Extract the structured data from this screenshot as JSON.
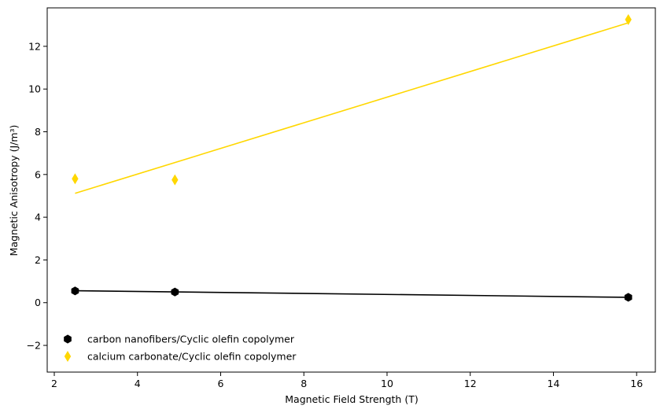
{
  "chart_data": {
    "type": "scatter",
    "title": "",
    "xlabel": "Magnetic Field Strength (T)",
    "ylabel": "Magnetic Anisotropy (J/m³)",
    "xlim": [
      1.83,
      16.45
    ],
    "ylim": [
      -3.25,
      13.8
    ],
    "xticks": [
      2,
      4,
      6,
      8,
      10,
      12,
      14,
      16
    ],
    "yticks": [
      -2,
      0,
      2,
      4,
      6,
      8,
      10,
      12
    ],
    "grid": false,
    "legend_position": "lower-left",
    "series": [
      {
        "name": "carbon nanofibers/Cyclic olefin copolymer",
        "color": "#000000",
        "marker": "hexagon",
        "x": [
          2.5,
          4.9,
          15.8
        ],
        "y": [
          0.55,
          0.5,
          0.25
        ],
        "fit": {
          "x": [
            2.5,
            15.8
          ],
          "y": [
            0.56,
            0.25
          ]
        }
      },
      {
        "name": "calcium carbonate/Cyclic olefin copolymer",
        "color": "#ffd700",
        "marker": "thin-diamond",
        "x": [
          2.5,
          4.9,
          15.8
        ],
        "y": [
          5.8,
          5.75,
          13.25
        ],
        "fit": {
          "x": [
            2.5,
            15.8
          ],
          "y": [
            5.12,
            13.1
          ]
        }
      }
    ]
  }
}
